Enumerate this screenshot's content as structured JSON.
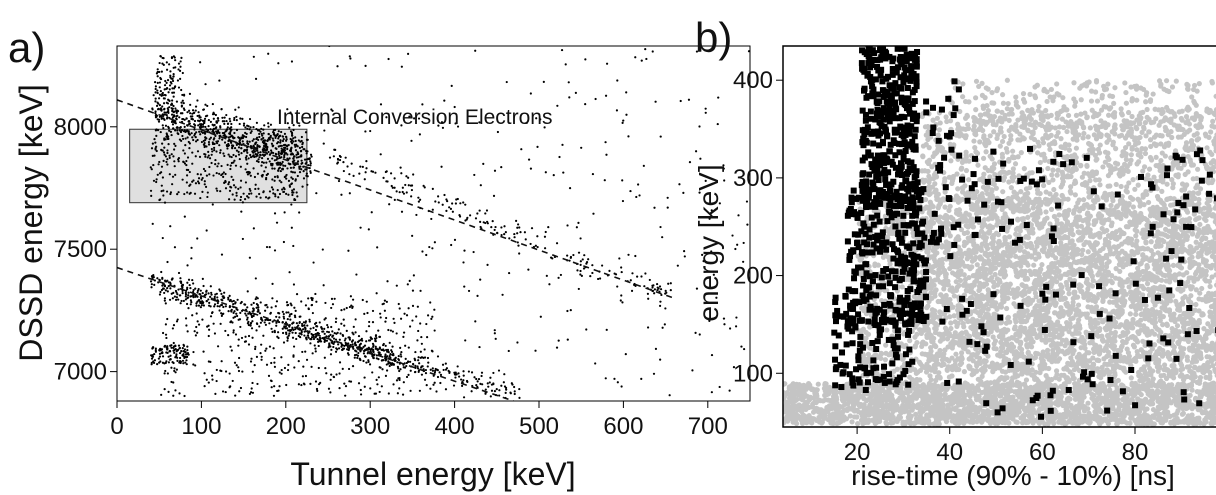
{
  "chart_data": [
    {
      "panel": "a)",
      "type": "scatter",
      "xlabel": "Tunnel energy [keV]",
      "ylabel": "DSSD energy [keV]",
      "xlim": [
        0,
        750
      ],
      "ylim": [
        6880,
        8330
      ],
      "xticks": [
        0,
        100,
        200,
        300,
        400,
        500,
        600,
        700
      ],
      "yticks": [
        7000,
        7500,
        8000
      ],
      "grid": false,
      "annotation": {
        "text": "Internal Conversion Electrons",
        "box": {
          "x": [
            15,
            225
          ],
          "y": [
            7690,
            7990
          ]
        }
      },
      "trend_lines": [
        {
          "style": "dashed",
          "x": [
            0,
            660
          ],
          "y": [
            8110,
            7300
          ]
        },
        {
          "style": "dashed",
          "x": [
            0,
            470
          ],
          "y": [
            7425,
            6880
          ]
        }
      ],
      "series": [
        {
          "marker": "dot",
          "color": "#000000",
          "clusters": [
            {
              "n": 650,
              "x": [
                45,
                230
              ],
              "y_from": [
                8060,
                7860
              ],
              "spread": 45
            },
            {
              "n": 400,
              "x": [
                40,
                215
              ],
              "y": [
                7700,
                7990
              ]
            },
            {
              "n": 90,
              "x": [
                45,
                80
              ],
              "y": [
                8030,
                8290
              ]
            },
            {
              "n": 520,
              "x": [
                40,
                330
              ],
              "y_from": [
                7375,
                7050
              ],
              "spread": 28
            },
            {
              "n": 110,
              "x": [
                40,
                85
              ],
              "y": [
                7030,
                7110
              ]
            },
            {
              "n": 380,
              "x": [
                55,
                380
              ],
              "y": [
                6900,
                7300
              ]
            },
            {
              "n": 190,
              "x": [
                250,
                660
              ],
              "y_from": [
                7880,
                7300
              ],
              "spread": 25
            },
            {
              "n": 230,
              "x": [
                200,
                480
              ],
              "y_from": [
                7180,
                6900
              ],
              "spread": 20
            },
            {
              "n": 430,
              "x": [
                40,
                750
              ],
              "y": [
                6880,
                8330
              ]
            }
          ]
        }
      ]
    },
    {
      "panel": "b)",
      "type": "scatter",
      "xlabel": "rise-time (90% - 10%) [ns]",
      "ylabel": "energy [keV]",
      "xlim": [
        4,
        99
      ],
      "ylim": [
        45,
        435
      ],
      "xticks": [
        20,
        40,
        60,
        80
      ],
      "yticks": [
        100,
        200,
        300,
        400
      ],
      "grid": false,
      "series": [
        {
          "marker": "circle",
          "color": "#c4c4c4",
          "clusters": [
            {
              "n": 2200,
              "x": [
                4,
                99
              ],
              "y": [
                48,
                90
              ]
            },
            {
              "n": 2600,
              "x": [
                20,
                99
              ],
              "y": [
                90,
                280
              ]
            },
            {
              "n": 2400,
              "x": [
                34,
                99
              ],
              "y": [
                100,
                370
              ]
            },
            {
              "n": 300,
              "x": [
                40,
                99
              ],
              "y": [
                340,
                400
              ]
            }
          ]
        },
        {
          "marker": "square",
          "color": "#000000",
          "clusters": [
            {
              "n": 380,
              "x": [
                21,
                33
              ],
              "y": [
                270,
                435
              ]
            },
            {
              "n": 260,
              "x": [
                18,
                35
              ],
              "y": [
                150,
                290
              ]
            },
            {
              "n": 130,
              "x": [
                15,
                32
              ],
              "y": [
                80,
                180
              ]
            },
            {
              "n": 45,
              "x": [
                32,
                42
              ],
              "y": [
                230,
                400
              ]
            },
            {
              "n": 150,
              "x": [
                38,
                99
              ],
              "y": [
                55,
                330
              ]
            }
          ]
        }
      ]
    }
  ]
}
